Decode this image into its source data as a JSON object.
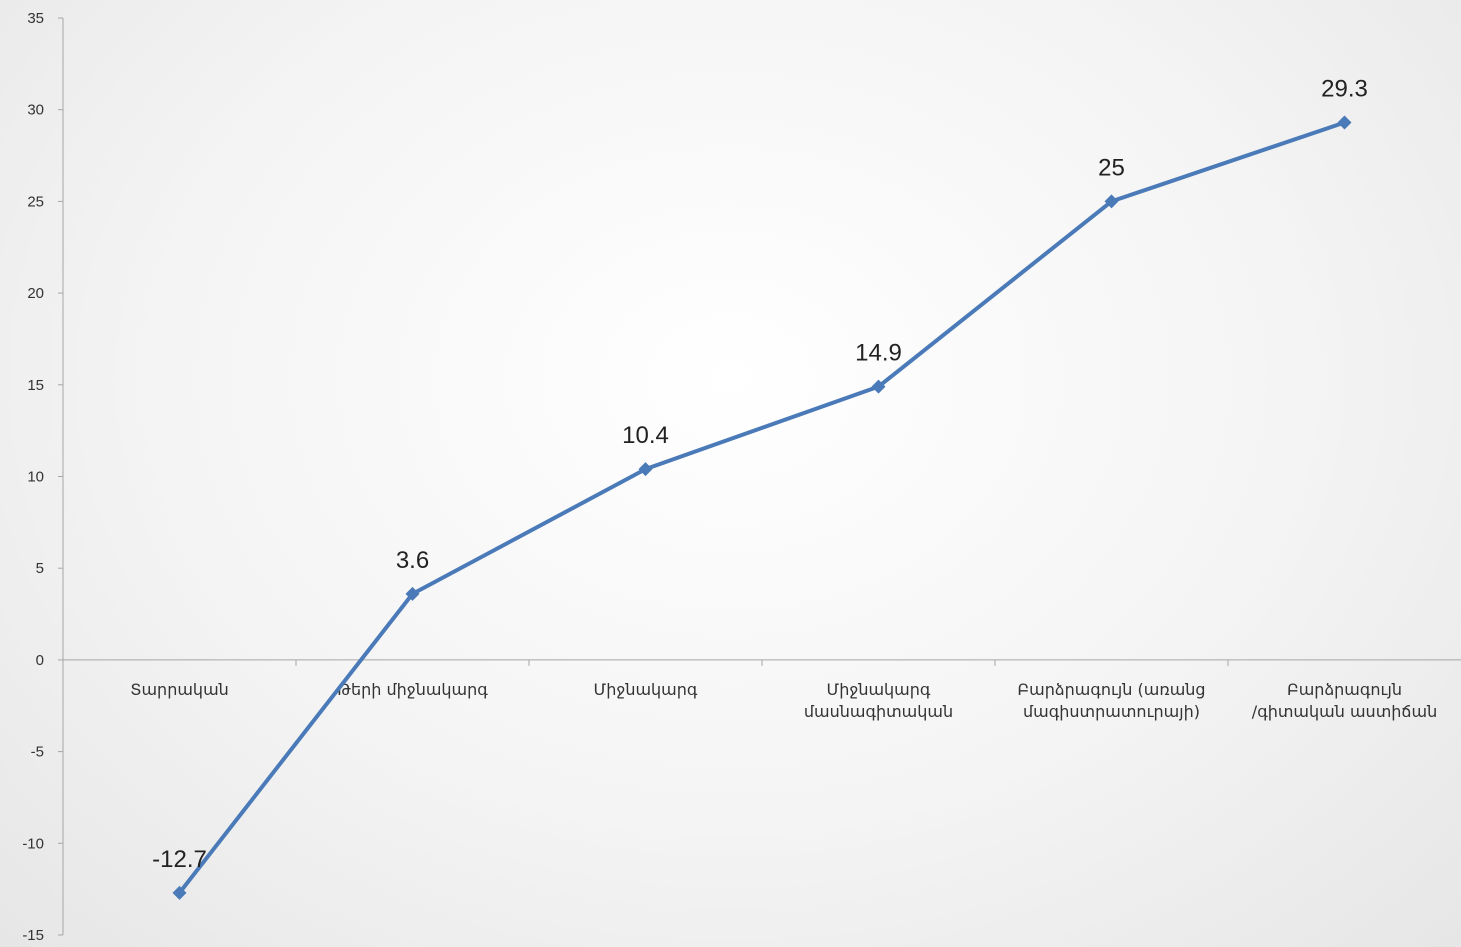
{
  "chart_data": {
    "type": "line",
    "categories": [
      [
        "Տարրական"
      ],
      [
        "Թերի միջնակարգ"
      ],
      [
        "Միջնակարգ"
      ],
      [
        "Միջնակարգ",
        "մասնագիտական"
      ],
      [
        "Բարձրագույն (առանց",
        "մագիստրատուրայի)"
      ],
      [
        "Բարձրագույն",
        "/գիտական աստիճան"
      ]
    ],
    "series": [
      {
        "values": [
          -12.7,
          3.6,
          10.4,
          14.9,
          25,
          29.3
        ],
        "color": "#4a7ab8"
      }
    ],
    "data_labels": [
      "-12.7",
      "3.6",
      "10.4",
      "14.9",
      "25",
      "29.3"
    ],
    "y_ticks": [
      "-15",
      "-10",
      "-5",
      "0",
      "5",
      "10",
      "15",
      "20",
      "25",
      "30",
      "35"
    ],
    "ylim": [
      -15,
      35
    ],
    "grid": false,
    "legend": "none",
    "marker": "diamond",
    "colors": {
      "axis": "#a6a6a6",
      "text": "#333333",
      "line": "#4a7ab8"
    }
  }
}
